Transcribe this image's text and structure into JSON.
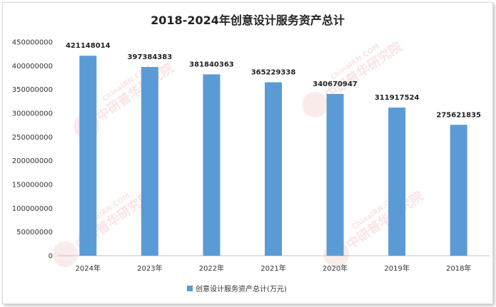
{
  "chart_data": {
    "type": "bar",
    "title": "2018-2024年创意设计服务资产总计",
    "categories": [
      "2024年",
      "2023年",
      "2022年",
      "2021年",
      "2020年",
      "2019年",
      "2018年"
    ],
    "series": [
      {
        "name": "创意设计服务资产总计(万元)",
        "values": [
          421148014,
          397384383,
          381840363,
          365229338,
          340670947,
          311917524,
          275621835
        ]
      }
    ],
    "ylim": [
      0,
      450000000
    ],
    "yticks": [
      0,
      50000000,
      100000000,
      150000000,
      200000000,
      250000000,
      300000000,
      350000000,
      400000000,
      450000000
    ],
    "grid": false,
    "legend": "bottom",
    "bar_color": "#5b9bd5"
  },
  "watermark": {
    "cn": "中研普华研究院",
    "en": "ChinaIRN.COM",
    "logo": "CIRN"
  }
}
